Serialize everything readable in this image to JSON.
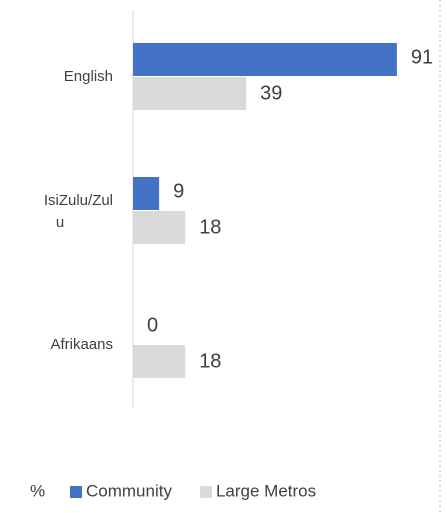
{
  "chart_data": {
    "type": "bar",
    "orientation": "horizontal",
    "categories": [
      "English",
      "IsiZulu/Zulu",
      "Afrikaans"
    ],
    "series": [
      {
        "name": "Community",
        "color": "#4472c4",
        "values": [
          91,
          9,
          0
        ]
      },
      {
        "name": "Large Metros",
        "color": "#d9d9d9",
        "values": [
          39,
          18,
          18
        ]
      }
    ],
    "xlim": [
      0,
      100
    ],
    "unit": "%",
    "legend": "bottom"
  }
}
